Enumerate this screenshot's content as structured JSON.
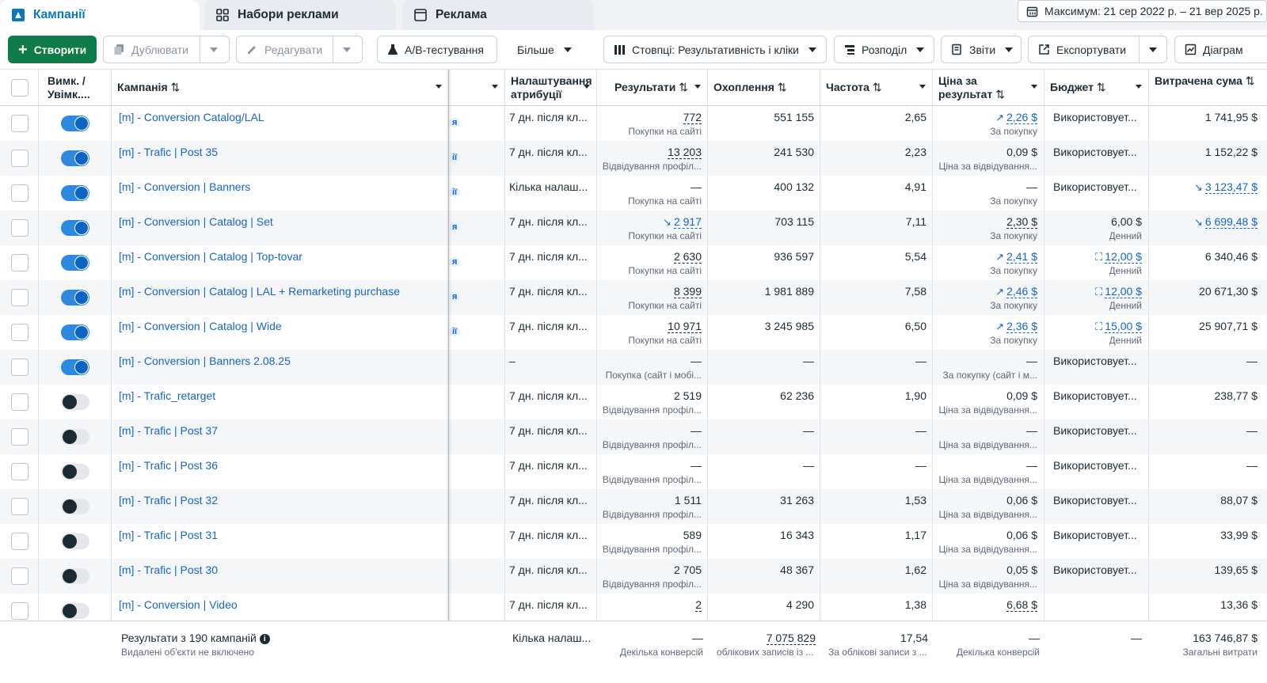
{
  "tabs": [
    {
      "label": "Кампанії",
      "icon": "campaign-flag-icon",
      "active": true
    },
    {
      "label": "Набори реклами",
      "icon": "grid-icon",
      "active": false
    },
    {
      "label": "Реклама",
      "icon": "ad-square-icon",
      "active": false
    }
  ],
  "date_range": "Максимум: 21 сер 2022 р. – 21 вер 2025 р.",
  "toolbar": {
    "create": "Створити",
    "duplicate": "Дублювати",
    "edit": "Редагувати",
    "ab_test": "A/B-тестування",
    "more": "Більше",
    "columns": "Стовпці: Результативність і кліки",
    "breakdown": "Розподіл",
    "reports": "Звіти",
    "export": "Експортувати",
    "charts": "Діаграм"
  },
  "headers": {
    "onoff": "Вимк. / Увімк....",
    "campaign": "Кампанія",
    "attribution": "Налаштування атрибуції",
    "results": "Результати",
    "reach": "Охоплення",
    "frequency": "Частота",
    "cost_per_result": "Ціна за результат",
    "budget": "Бюджет",
    "amount_spent": "Витрачена сума"
  },
  "rows": [
    {
      "name": "[m] - Conversion Catalog/LAL",
      "on": true,
      "frag": "я",
      "attr": "7 дн. після кл...",
      "res": "772",
      "res_sub": "Покупки на сайті",
      "reach": "551 155",
      "freq": "2,65",
      "cpr": "2,26 $",
      "cpr_sub": "За покупку",
      "budget": "Використовует...",
      "budget_sub": "",
      "spent": "1 741,95 $"
    },
    {
      "name": "[m] - Trafic | Post 35",
      "on": true,
      "frag": "ії",
      "attr": "7 дн. після кл...",
      "res": "13 203",
      "res_sub": "Відвідування профіл...",
      "reach": "241 530",
      "freq": "2,23",
      "cpr": "0,09 $",
      "cpr_sub": "Ціна за відвідування...",
      "budget": "Використовует...",
      "budget_sub": "",
      "spent": "1 152,22 $"
    },
    {
      "name": "[m] - Conversion | Banners",
      "on": true,
      "frag": "ії",
      "attr": "Кілька налаш...",
      "res": "—",
      "res_sub": "Покупка на сайті",
      "reach": "400 132",
      "freq": "4,91",
      "cpr": "—",
      "cpr_sub": "За покупку",
      "budget": "Використовует...",
      "budget_sub": "",
      "spent": "3 123,47 $"
    },
    {
      "name": "[m] - Conversion | Catalog | Set",
      "on": true,
      "frag": "я",
      "attr": "7 дн. після кл...",
      "res": "2 917",
      "res_sub": "Покупки на сайті",
      "reach": "703 115",
      "freq": "7,11",
      "cpr": "2,30 $",
      "cpr_sub": "За покупку",
      "budget": "6,00 $",
      "budget_sub": "Денний",
      "spent": "6 699,48 $"
    },
    {
      "name": "[m] - Conversion | Catalog | Top-tovar",
      "on": true,
      "frag": "я",
      "attr": "7 дн. після кл...",
      "res": "2 630",
      "res_sub": "Покупки на сайті",
      "reach": "936 597",
      "freq": "5,54",
      "cpr": "2,41 $",
      "cpr_sub": "За покупку",
      "budget": "12,00 $",
      "budget_sub": "Денний",
      "spent": "6 340,46 $"
    },
    {
      "name": "[m] - Conversion | Catalog | LAL + Remarketing purchase",
      "on": true,
      "frag": "я",
      "attr": "7 дн. після кл...",
      "res": "8 399",
      "res_sub": "Покупки на сайті",
      "reach": "1 981 889",
      "freq": "7,58",
      "cpr": "2,46 $",
      "cpr_sub": "За покупку",
      "budget": "12,00 $",
      "budget_sub": "Денний",
      "spent": "20 671,30 $"
    },
    {
      "name": "[m] - Conversion | Catalog | Wide",
      "on": true,
      "frag": "ії",
      "attr": "7 дн. після кл...",
      "res": "10 971",
      "res_sub": "Покупки на сайті",
      "reach": "3 245 985",
      "freq": "6,50",
      "cpr": "2,36 $",
      "cpr_sub": "За покупку",
      "budget": "15,00 $",
      "budget_sub": "Денний",
      "spent": "25 907,71 $"
    },
    {
      "name": "[m] - Conversion | Banners 2.08.25",
      "on": true,
      "frag": "",
      "attr": "–",
      "res": "—",
      "res_sub": "Покупка (сайт і мобі...",
      "reach": "—",
      "freq": "—",
      "cpr": "—",
      "cpr_sub": "За покупку (сайт і м...",
      "budget": "Використовует...",
      "budget_sub": "",
      "spent": "—"
    },
    {
      "name": "[m] - Trafic_retarget",
      "on": false,
      "frag": "",
      "attr": "7 дн. після кл...",
      "res": "2 519",
      "res_sub": "Відвідування профіл...",
      "reach": "62 236",
      "freq": "1,90",
      "cpr": "0,09 $",
      "cpr_sub": "Ціна за відвідування...",
      "budget": "Використовует...",
      "budget_sub": "",
      "spent": "238,77 $"
    },
    {
      "name": "[m] - Trafic | Post 37",
      "on": false,
      "frag": "",
      "attr": "7 дн. після кл...",
      "res": "—",
      "res_sub": "Відвідування профіл...",
      "reach": "—",
      "freq": "—",
      "cpr": "—",
      "cpr_sub": "Ціна за відвідування...",
      "budget": "Використовует...",
      "budget_sub": "",
      "spent": "—"
    },
    {
      "name": "[m] - Trafic | Post 36",
      "on": false,
      "frag": "",
      "attr": "7 дн. після кл...",
      "res": "—",
      "res_sub": "Відвідування профіл...",
      "reach": "—",
      "freq": "—",
      "cpr": "—",
      "cpr_sub": "Ціна за відвідування...",
      "budget": "Використовует...",
      "budget_sub": "",
      "spent": "—"
    },
    {
      "name": "[m] - Trafic | Post 32",
      "on": false,
      "frag": "",
      "attr": "7 дн. після кл...",
      "res": "1 511",
      "res_sub": "Відвідування профіл...",
      "reach": "31 263",
      "freq": "1,53",
      "cpr": "0,06 $",
      "cpr_sub": "Ціна за відвідування...",
      "budget": "Використовует...",
      "budget_sub": "",
      "spent": "88,07 $"
    },
    {
      "name": "[m] - Trafic | Post 31",
      "on": false,
      "frag": "",
      "attr": "7 дн. після кл...",
      "res": "589",
      "res_sub": "Відвідування профіл...",
      "reach": "16 343",
      "freq": "1,17",
      "cpr": "0,06 $",
      "cpr_sub": "Ціна за відвідування...",
      "budget": "Використовует...",
      "budget_sub": "",
      "spent": "33,99 $"
    },
    {
      "name": "[m] - Trafic | Post 30",
      "on": false,
      "frag": "",
      "attr": "7 дн. після кл...",
      "res": "2 705",
      "res_sub": "Відвідування профіл...",
      "reach": "48 367",
      "freq": "1,62",
      "cpr": "0,05 $",
      "cpr_sub": "Ціна за відвідування...",
      "budget": "Використовует...",
      "budget_sub": "",
      "spent": "139,65 $"
    },
    {
      "name": "[m] - Conversion | Video",
      "on": false,
      "frag": "",
      "attr": "7 дн. після кл...",
      "res": "2",
      "res_sub": "",
      "reach": "4 290",
      "freq": "1,38",
      "cpr": "6,68 $",
      "cpr_sub": "",
      "budget": "",
      "budget_sub": "",
      "spent": "13,36 $"
    }
  ],
  "footer": {
    "title": "Результати з 190 кампаній",
    "note": "Видалені об'єкти не включено",
    "attr": "Кілька налаш...",
    "res": "—",
    "res_sub": "Декілька конверсій",
    "reach": "7 075 829",
    "reach_sub": "облікових записів із ...",
    "freq": "17,54",
    "freq_sub": "За облікові записи з ...",
    "cpr": "—",
    "cpr_sub": "Декілька конверсій",
    "budget": "—",
    "spent": "163 746,87 $",
    "spent_sub": "Загальні витрати"
  },
  "colors": {
    "accent": "#1566c8",
    "primary_button": "#0f7a4a",
    "toggle_on": "#2d88e0"
  }
}
